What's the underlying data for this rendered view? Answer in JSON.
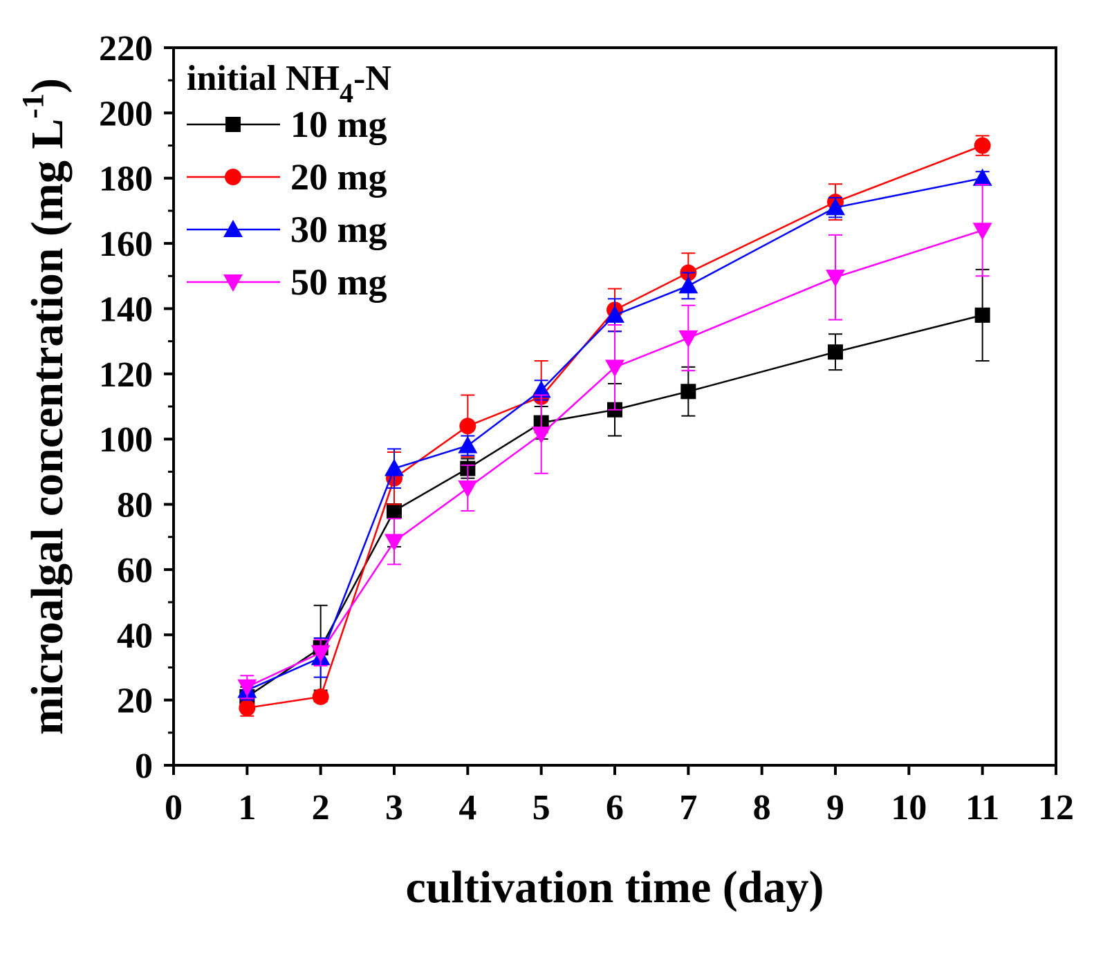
{
  "chart_data": {
    "type": "line",
    "title": "",
    "xlabel": "cultivation time (day)",
    "ylabel": "microalgal concentration (mg L-1)",
    "ylabel_parts": {
      "main": "microalgal concentration (mg L",
      "sup": "-1",
      "close": ")"
    },
    "xlim": [
      0,
      12
    ],
    "ylim": [
      0,
      220
    ],
    "xticks": [
      0,
      1,
      2,
      3,
      4,
      5,
      6,
      7,
      8,
      9,
      10,
      11,
      12
    ],
    "yticks": [
      0,
      20,
      40,
      60,
      80,
      100,
      120,
      140,
      160,
      180,
      200,
      220
    ],
    "grid": false,
    "legend": {
      "placement": "top-left",
      "title_parts": {
        "pre": "initial NH",
        "sub": "4",
        "post": "-N"
      },
      "title": "initial NH4-N"
    },
    "x": [
      1,
      2,
      3,
      4,
      5,
      6,
      7,
      9,
      11
    ],
    "series": [
      {
        "name": "10 mg",
        "color": "#000000",
        "marker": "square",
        "values": [
          21,
          36,
          78,
          91,
          105,
          109,
          114.6,
          126.7,
          138
        ],
        "errors": [
          3,
          13,
          11,
          3,
          5,
          8,
          7.5,
          5.5,
          14
        ]
      },
      {
        "name": "20 mg",
        "color": "#ff0000",
        "marker": "circle",
        "values": [
          17.6,
          21,
          88,
          104,
          113,
          139.6,
          151,
          172.7,
          190
        ],
        "errors": [
          2.5,
          1.5,
          8,
          9.5,
          11,
          6.5,
          6,
          5.5,
          3
        ]
      },
      {
        "name": "30 mg",
        "color": "#0000ff",
        "marker": "triangle-up",
        "values": [
          23,
          33,
          91,
          98,
          115,
          138,
          147,
          171,
          180
        ],
        "errors": [
          3,
          6,
          6,
          3,
          3,
          5,
          4,
          3,
          2
        ]
      },
      {
        "name": "50 mg",
        "color": "#ff00ff",
        "marker": "triangle-down",
        "values": [
          24,
          34.5,
          68.6,
          85,
          101.5,
          122,
          131,
          149.6,
          164
        ],
        "errors": [
          3.5,
          4,
          7,
          7,
          12,
          13,
          10,
          13,
          14
        ]
      }
    ]
  }
}
